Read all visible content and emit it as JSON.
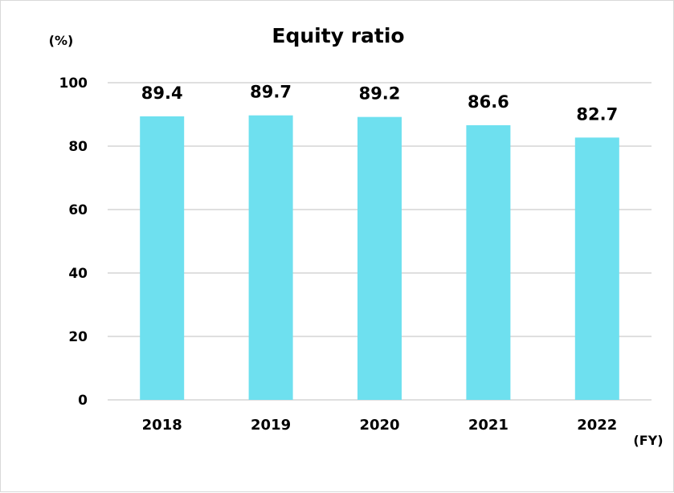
{
  "chart_data": {
    "type": "bar",
    "title": "Equity ratio",
    "ylabel": "(%)",
    "xlabel": "(FY)",
    "categories": [
      "2018",
      "2019",
      "2020",
      "2021",
      "2022"
    ],
    "series": [
      {
        "values": [
          89.4,
          89.7,
          89.2,
          86.6,
          82.7
        ]
      }
    ],
    "data_labels": [
      "89.4",
      "89.7",
      "89.2",
      "86.6",
      "82.7"
    ],
    "yticks": [
      0,
      20,
      40,
      60,
      80,
      100
    ],
    "ylim": [
      0,
      100
    ],
    "grid": true,
    "legend": "none",
    "colors": {
      "bar": "#6ee0ef",
      "grid": "#bfbfbf"
    }
  }
}
